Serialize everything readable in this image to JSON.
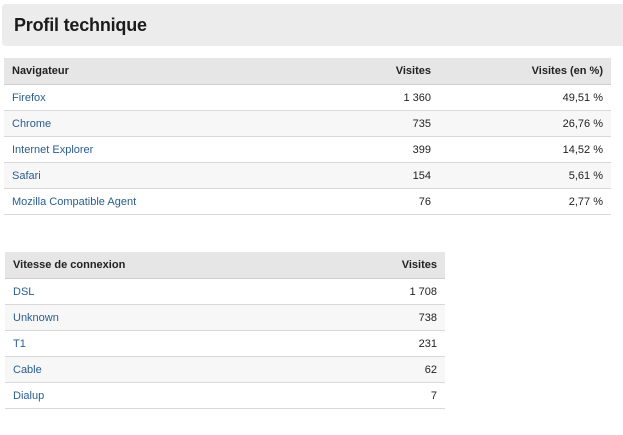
{
  "page": {
    "title": "Profil technique"
  },
  "browsers": {
    "headers": {
      "name": "Navigateur",
      "visits": "Visites",
      "percent": "Visites (en %)"
    },
    "rows": [
      {
        "name": "Firefox",
        "visits": "1 360",
        "percent": "49,51 %"
      },
      {
        "name": "Chrome",
        "visits": "735",
        "percent": "26,76 %"
      },
      {
        "name": "Internet Explorer",
        "visits": "399",
        "percent": "14,52 %"
      },
      {
        "name": "Safari",
        "visits": "154",
        "percent": "5,61 %"
      },
      {
        "name": "Mozilla Compatible Agent",
        "visits": "76",
        "percent": "2,77 %"
      }
    ]
  },
  "connection": {
    "headers": {
      "name": "Vitesse de connexion",
      "visits": "Visites"
    },
    "rows": [
      {
        "name": "DSL",
        "visits": "1 708"
      },
      {
        "name": "Unknown",
        "visits": "738"
      },
      {
        "name": "T1",
        "visits": "231"
      },
      {
        "name": "Cable",
        "visits": "62"
      },
      {
        "name": "Dialup",
        "visits": "7"
      }
    ]
  }
}
